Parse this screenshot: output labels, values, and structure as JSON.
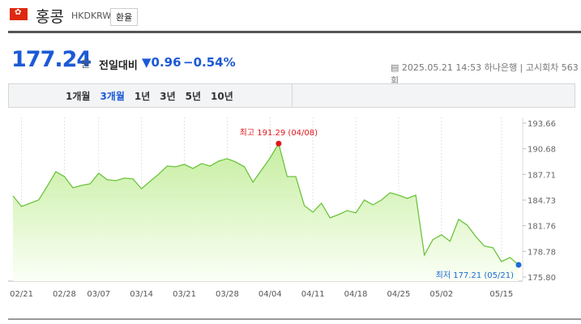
{
  "header": {
    "title": "홍콩",
    "code": "HKDKRW",
    "button": "환율"
  },
  "quote": {
    "price": "177.24",
    "unit": "원",
    "change_label": "전일대비",
    "change": "0.96",
    "change_pct": "−0.54%",
    "timestamp": "2025.05.21 14:53",
    "bank": "하나은행",
    "round": "고시회차 563회"
  },
  "tabs": {
    "items": [
      "1개월",
      "3개월",
      "1년",
      "3년",
      "5년",
      "10년"
    ],
    "active": 1
  },
  "chart_data": {
    "type": "line",
    "categories": [
      null,
      "02/21",
      null,
      null,
      null,
      null,
      "02/28",
      null,
      null,
      null,
      "03/07",
      null,
      null,
      null,
      null,
      "03/14",
      null,
      null,
      null,
      null,
      "03/21",
      null,
      null,
      null,
      null,
      "03/28",
      null,
      null,
      null,
      null,
      "04/04",
      null,
      null,
      null,
      null,
      "04/11",
      null,
      null,
      null,
      null,
      "04/18",
      null,
      null,
      null,
      null,
      "04/25",
      null,
      null,
      null,
      null,
      "05/02",
      null,
      null,
      null,
      null,
      null,
      null,
      "05/15",
      null,
      null
    ],
    "series": [
      {
        "name": "HKDKRW",
        "color": "#6cc43c",
        "values": [
          185.21,
          183.99,
          184.36,
          184.74,
          186.34,
          188.03,
          187.46,
          186.15,
          186.43,
          186.62,
          187.84,
          187.09,
          186.99,
          187.28,
          187.18,
          186.05,
          186.9,
          187.74,
          188.68,
          188.59,
          188.87,
          188.4,
          188.97,
          188.68,
          189.25,
          189.53,
          189.15,
          188.59,
          186.81,
          188.21,
          189.62,
          191.29,
          187.46,
          187.46,
          184.08,
          183.33,
          184.36,
          182.67,
          183.05,
          183.52,
          183.24,
          184.74,
          184.18,
          184.74,
          185.58,
          185.3,
          184.93,
          185.3,
          178.35,
          180.14,
          180.7,
          179.95,
          182.49,
          181.83,
          180.51,
          179.39,
          179.2,
          177.6,
          178.07,
          177.21
        ]
      }
    ],
    "ylim": [
      175.8,
      193.66
    ],
    "yticks": [
      {
        "value": 175.8,
        "label": "175.80"
      },
      178.78,
      181.76,
      184.73,
      187.71,
      190.68,
      193.66
    ],
    "annotations": [
      {
        "text": "최고 191.29 (04/08)",
        "index": 31,
        "color": "#e0161b"
      },
      {
        "text": "최저 177.21 (05/21)",
        "index": 59,
        "color": "#1a6ad8"
      }
    ]
  }
}
